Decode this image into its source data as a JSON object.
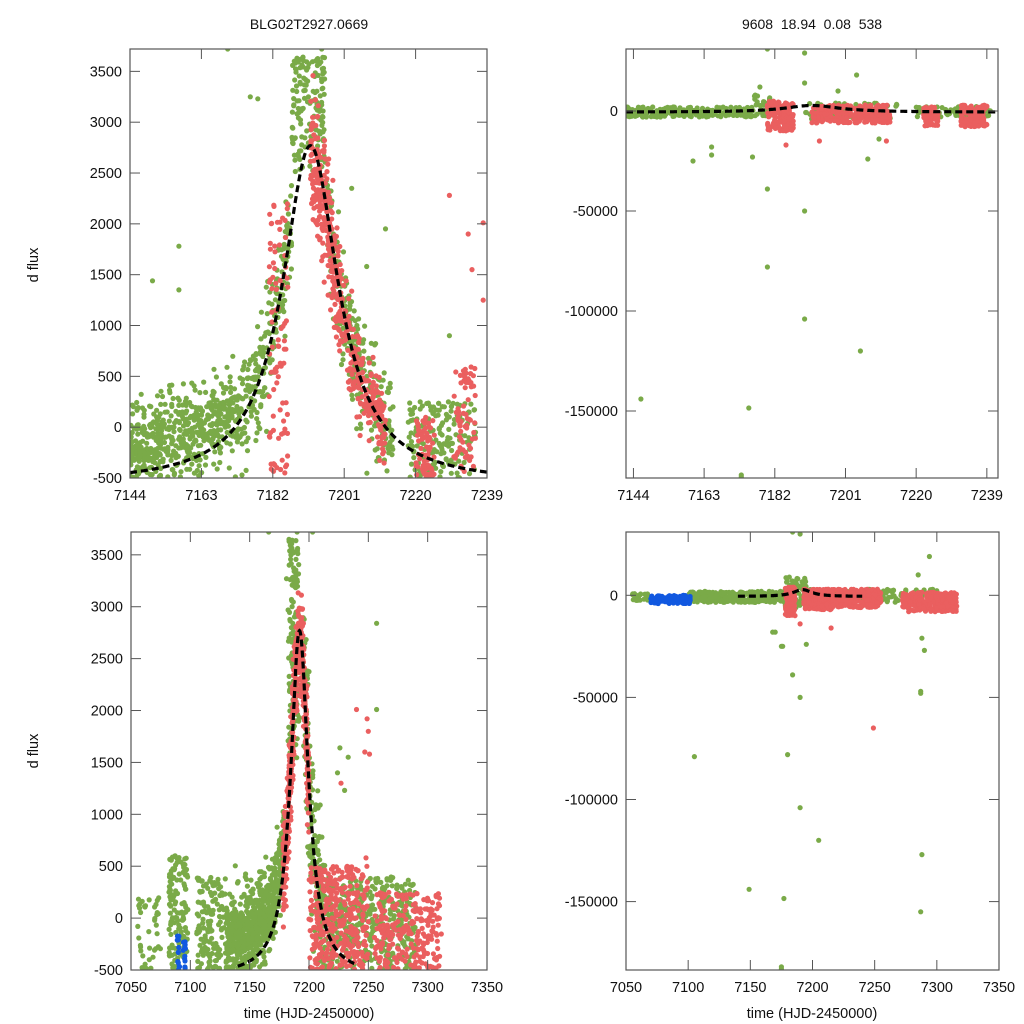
{
  "figure": {
    "title_left": "BLG02T2927.0669",
    "title_right": "9608  18.94  0.08  538",
    "ylabel": "d flux",
    "xlabel": "time (HJD-2450000)"
  },
  "colors": {
    "green": "#7aaa48",
    "red": "#ea5f5f",
    "blue": "#1158e0",
    "model": "#000000",
    "frame": "#555555"
  },
  "chart_data": [
    {
      "id": "top-left",
      "type": "scatter",
      "title": "BLG02T2927.0669",
      "xlabel": "",
      "ylabel": "d flux",
      "xlim": [
        7144,
        7239
      ],
      "ylim": [
        -500,
        3720
      ],
      "xticks": [
        7144,
        7163,
        7182,
        7201,
        7220,
        7239
      ],
      "yticks": [
        -500,
        0,
        500,
        1000,
        1500,
        2000,
        2500,
        3000,
        3500
      ],
      "model": {
        "t0": 7192,
        "peak": 2770,
        "baseline": -560,
        "width": 9,
        "xrange": [
          7144,
          7239
        ]
      },
      "series": [
        {
          "name": "green",
          "segments": [
            {
              "t": [
                7144,
                7172
              ],
              "n": 520,
              "spread": "model+",
              "sd": 260,
              "bias": 120
            },
            {
              "t": [
                7172,
                7187
              ],
              "n": 220,
              "spread": "model",
              "sd": 300,
              "bias": 80
            },
            {
              "t": [
                7187,
                7196
              ],
              "n": 150,
              "spread": "peak",
              "ymin": 2500,
              "ymax": 3650
            },
            {
              "t": [
                7196,
                7214
              ],
              "n": 260,
              "spread": "model",
              "sd": 260,
              "bias": 60
            },
            {
              "t": [
                7218,
                7236
              ],
              "n": 180,
              "spread": "band",
              "ymin": -500,
              "ymax": 250
            }
          ]
        },
        {
          "name": "red",
          "segments": [
            {
              "t": [
                7181,
                7186
              ],
              "n": 90,
              "spread": "band",
              "ymin": -450,
              "ymax": 2200
            },
            {
              "t": [
                7192,
                7200
              ],
              "n": 260,
              "spread": "model",
              "sd": 320,
              "bias": -100
            },
            {
              "t": [
                7200,
                7212
              ],
              "n": 200,
              "spread": "model",
              "sd": 220,
              "bias": 0
            },
            {
              "t": [
                7220,
                7225
              ],
              "n": 70,
              "spread": "band",
              "ymin": -500,
              "ymax": 100
            },
            {
              "t": [
                7230,
                7236
              ],
              "n": 70,
              "spread": "band",
              "ymin": -450,
              "ymax": 600
            }
          ]
        }
      ],
      "outliers": [
        {
          "x": 7170,
          "y": 3720,
          "c": "green"
        },
        {
          "x": 7195,
          "y": 3720,
          "c": "green"
        },
        {
          "x": 7176,
          "y": 3250,
          "c": "green"
        },
        {
          "x": 7178,
          "y": 3230,
          "c": "green"
        },
        {
          "x": 7157,
          "y": 1780,
          "c": "green"
        },
        {
          "x": 7157,
          "y": 1350,
          "c": "green"
        },
        {
          "x": 7150,
          "y": 1440,
          "c": "green"
        },
        {
          "x": 7229,
          "y": 2280,
          "c": "red"
        },
        {
          "x": 7234,
          "y": 1900,
          "c": "red"
        },
        {
          "x": 7238,
          "y": 2010,
          "c": "red"
        },
        {
          "x": 7235,
          "y": 1550,
          "c": "red"
        },
        {
          "x": 7238,
          "y": 1250,
          "c": "red"
        },
        {
          "x": 7203,
          "y": 2350,
          "c": "green"
        },
        {
          "x": 7207,
          "y": 1580,
          "c": "green"
        },
        {
          "x": 7212,
          "y": 1950,
          "c": "green"
        },
        {
          "x": 7229,
          "y": 900,
          "c": "green"
        }
      ]
    },
    {
      "id": "top-right",
      "type": "scatter",
      "title": "9608  18.94  0.08  538",
      "xlabel": "",
      "ylabel": "",
      "xlim": [
        7142,
        7242
      ],
      "ylim": [
        -183500,
        31000
      ],
      "xticks": [
        7144,
        7163,
        7182,
        7201,
        7220,
        7239
      ],
      "yticks": [
        -150000,
        -100000,
        -50000,
        0
      ],
      "model": {
        "t0": 7192,
        "peak": 2770,
        "baseline": -560,
        "width": 9,
        "xrange": [
          7142,
          7242
        ]
      },
      "series": [
        {
          "name": "green",
          "segments": [
            {
              "t": [
                7142,
                7176
              ],
              "n": 220,
              "spread": "band",
              "ymin": -3000,
              "ymax": 2000
            },
            {
              "t": [
                7176,
                7182
              ],
              "n": 40,
              "spread": "band",
              "ymin": -3000,
              "ymax": 8000
            },
            {
              "t": [
                7190,
                7215
              ],
              "n": 80,
              "spread": "band",
              "ymin": -4000,
              "ymax": 4000
            },
            {
              "t": [
                7220,
                7240
              ],
              "n": 70,
              "spread": "band",
              "ymin": -3000,
              "ymax": 2500
            }
          ]
        },
        {
          "name": "red",
          "segments": [
            {
              "t": [
                7180,
                7187
              ],
              "n": 140,
              "spread": "band",
              "ymin": -10000,
              "ymax": 5000
            },
            {
              "t": [
                7192,
                7213
              ],
              "n": 260,
              "spread": "band",
              "ymin": -6000,
              "ymax": 3000
            },
            {
              "t": [
                7222,
                7226
              ],
              "n": 60,
              "spread": "band",
              "ymin": -8000,
              "ymax": 2000
            },
            {
              "t": [
                7232,
                7239
              ],
              "n": 130,
              "spread": "band",
              "ymin": -8000,
              "ymax": 3000
            }
          ]
        }
      ],
      "outliers": [
        {
          "x": 7146,
          "y": -144000,
          "c": "green"
        },
        {
          "x": 7175,
          "y": -148500,
          "c": "green"
        },
        {
          "x": 7173,
          "y": -182000,
          "c": "green"
        },
        {
          "x": 7173,
          "y": -183000,
          "c": "green"
        },
        {
          "x": 7180,
          "y": -78000,
          "c": "green"
        },
        {
          "x": 7180,
          "y": -39000,
          "c": "green"
        },
        {
          "x": 7190,
          "y": -50000,
          "c": "green"
        },
        {
          "x": 7190,
          "y": -104000,
          "c": "green"
        },
        {
          "x": 7205,
          "y": -120000,
          "c": "green"
        },
        {
          "x": 7180,
          "y": 31000,
          "c": "green"
        },
        {
          "x": 7190,
          "y": 29000,
          "c": "green"
        },
        {
          "x": 7190,
          "y": 14000,
          "c": "green"
        },
        {
          "x": 7178,
          "y": 12000,
          "c": "green"
        },
        {
          "x": 7199,
          "y": 10000,
          "c": "green"
        },
        {
          "x": 7204,
          "y": 18000,
          "c": "green"
        },
        {
          "x": 7165,
          "y": -18000,
          "c": "green"
        },
        {
          "x": 7165,
          "y": -22000,
          "c": "green"
        },
        {
          "x": 7160,
          "y": -25000,
          "c": "green"
        },
        {
          "x": 7176,
          "y": -23000,
          "c": "green"
        },
        {
          "x": 7207,
          "y": -24000,
          "c": "green"
        },
        {
          "x": 7210,
          "y": -14000,
          "c": "green"
        },
        {
          "x": 7185,
          "y": -17000,
          "c": "red"
        },
        {
          "x": 7194,
          "y": -15000,
          "c": "red"
        },
        {
          "x": 7212,
          "y": -15000,
          "c": "red"
        }
      ]
    },
    {
      "id": "bottom-left",
      "type": "scatter",
      "title": "",
      "xlabel": "time (HJD-2450000)",
      "ylabel": "d flux",
      "xlim": [
        7050,
        7350
      ],
      "ylim": [
        -500,
        3720
      ],
      "xticks": [
        7050,
        7100,
        7150,
        7200,
        7250,
        7300,
        7350
      ],
      "yticks": [
        -500,
        0,
        500,
        1000,
        1500,
        2000,
        2500,
        3000,
        3500
      ],
      "model": {
        "t0": 7192,
        "peak": 2770,
        "baseline": -560,
        "width": 9,
        "xrange": [
          7140,
          7240
        ]
      },
      "series": [
        {
          "name": "green",
          "segments": [
            {
              "t": [
                7055,
                7075
              ],
              "n": 40,
              "spread": "band",
              "ymin": -500,
              "ymax": 200
            },
            {
              "t": [
                7082,
                7098
              ],
              "n": 130,
              "spread": "band",
              "ymin": -500,
              "ymax": 600
            },
            {
              "t": [
                7105,
                7130
              ],
              "n": 140,
              "spread": "band",
              "ymin": -500,
              "ymax": 400
            },
            {
              "t": [
                7130,
                7180
              ],
              "n": 700,
              "spread": "model+",
              "sd": 260,
              "bias": 150
            },
            {
              "t": [
                7182,
                7192
              ],
              "n": 160,
              "spread": "peak",
              "ymin": 1500,
              "ymax": 3650
            },
            {
              "t": [
                7195,
                7215
              ],
              "n": 200,
              "spread": "model",
              "sd": 400,
              "bias": 50
            },
            {
              "t": [
                7215,
                7290
              ],
              "n": 380,
              "spread": "band",
              "ymin": -500,
              "ymax": 400
            }
          ]
        },
        {
          "name": "red",
          "segments": [
            {
              "t": [
                7178,
                7188
              ],
              "n": 180,
              "spread": "model",
              "sd": 250,
              "bias": 0
            },
            {
              "t": [
                7188,
                7200
              ],
              "n": 260,
              "spread": "model",
              "sd": 250,
              "bias": -50
            },
            {
              "t": [
                7200,
                7250
              ],
              "n": 360,
              "spread": "band",
              "ymin": -500,
              "ymax": 500
            },
            {
              "t": [
                7255,
                7312
              ],
              "n": 240,
              "spread": "band",
              "ymin": -500,
              "ymax": 250
            }
          ]
        },
        {
          "name": "blue",
          "segments": [
            {
              "t": [
                7089,
                7096
              ],
              "n": 22,
              "spread": "band",
              "ymin": -500,
              "ymax": -150
            }
          ]
        }
      ],
      "outliers": [
        {
          "x": 7190,
          "y": 3720,
          "c": "green"
        },
        {
          "x": 7166,
          "y": 3720,
          "c": "green"
        },
        {
          "x": 7203,
          "y": 3720,
          "c": "green"
        },
        {
          "x": 7181,
          "y": 3270,
          "c": "green"
        },
        {
          "x": 7257,
          "y": 2840,
          "c": "green"
        },
        {
          "x": 7257,
          "y": 2010,
          "c": "green"
        },
        {
          "x": 7240,
          "y": 2010,
          "c": "red"
        },
        {
          "x": 7250,
          "y": 1800,
          "c": "red"
        },
        {
          "x": 7247,
          "y": 1600,
          "c": "red"
        },
        {
          "x": 7226,
          "y": 1640,
          "c": "green"
        },
        {
          "x": 7230,
          "y": 1230,
          "c": "green"
        },
        {
          "x": 7227,
          "y": 1300,
          "c": "red"
        },
        {
          "x": 7233,
          "y": 1550,
          "c": "green"
        },
        {
          "x": 7249,
          "y": 1920,
          "c": "red"
        },
        {
          "x": 7251,
          "y": 1580,
          "c": "red"
        },
        {
          "x": 7224,
          "y": 1400,
          "c": "green"
        },
        {
          "x": 7248,
          "y": 580,
          "c": "red"
        }
      ]
    },
    {
      "id": "bottom-right",
      "type": "scatter",
      "title": "",
      "xlabel": "time (HJD-2450000)",
      "ylabel": "",
      "xlim": [
        7050,
        7350
      ],
      "ylim": [
        -183500,
        31000
      ],
      "xticks": [
        7050,
        7100,
        7150,
        7200,
        7250,
        7300,
        7350
      ],
      "yticks": [
        -150000,
        -100000,
        -50000,
        0
      ],
      "model": {
        "t0": 7192,
        "peak": 2770,
        "baseline": -560,
        "width": 9,
        "xrange": [
          7140,
          7240
        ]
      },
      "series": [
        {
          "name": "green",
          "segments": [
            {
              "t": [
                7055,
                7068
              ],
              "n": 30,
              "spread": "band",
              "ymin": -2500,
              "ymax": 800
            },
            {
              "t": [
                7100,
                7178
              ],
              "n": 320,
              "spread": "band",
              "ymin": -3500,
              "ymax": 2000
            },
            {
              "t": [
                7178,
                7195
              ],
              "n": 90,
              "spread": "band",
              "ymin": -6000,
              "ymax": 9000
            },
            {
              "t": [
                7195,
                7300
              ],
              "n": 200,
              "spread": "band",
              "ymin": -3500,
              "ymax": 3000
            }
          ]
        },
        {
          "name": "red",
          "segments": [
            {
              "t": [
                7178,
                7186
              ],
              "n": 160,
              "spread": "band",
              "ymin": -10000,
              "ymax": 4000
            },
            {
              "t": [
                7193,
                7215
              ],
              "n": 260,
              "spread": "band",
              "ymin": -7000,
              "ymax": 3000
            },
            {
              "t": [
                7215,
                7255
              ],
              "n": 220,
              "spread": "band",
              "ymin": -6000,
              "ymax": 3000
            },
            {
              "t": [
                7272,
                7316
              ],
              "n": 260,
              "spread": "band",
              "ymin": -8000,
              "ymax": 1500
            }
          ]
        },
        {
          "name": "blue",
          "segments": [
            {
              "t": [
                7070,
                7102
              ],
              "n": 120,
              "spread": "band",
              "ymin": -4000,
              "ymax": 0
            }
          ]
        }
      ],
      "outliers": [
        {
          "x": 7105,
          "y": -79000,
          "c": "green"
        },
        {
          "x": 7180,
          "y": -78000,
          "c": "green"
        },
        {
          "x": 7190,
          "y": -104000,
          "c": "green"
        },
        {
          "x": 7205,
          "y": -120000,
          "c": "green"
        },
        {
          "x": 7288,
          "y": -127000,
          "c": "green"
        },
        {
          "x": 7149,
          "y": -144000,
          "c": "green"
        },
        {
          "x": 7177,
          "y": -148500,
          "c": "green"
        },
        {
          "x": 7287,
          "y": -155000,
          "c": "green"
        },
        {
          "x": 7175,
          "y": -182000,
          "c": "green"
        },
        {
          "x": 7175,
          "y": -183000,
          "c": "green"
        },
        {
          "x": 7249,
          "y": -65000,
          "c": "red"
        },
        {
          "x": 7190,
          "y": -50000,
          "c": "green"
        },
        {
          "x": 7184,
          "y": -39000,
          "c": "green"
        },
        {
          "x": 7287,
          "y": -47000,
          "c": "green"
        },
        {
          "x": 7287,
          "y": -48000,
          "c": "green"
        },
        {
          "x": 7184,
          "y": 31000,
          "c": "green"
        },
        {
          "x": 7190,
          "y": 30000,
          "c": "green"
        },
        {
          "x": 7294,
          "y": 19000,
          "c": "green"
        },
        {
          "x": 7285,
          "y": 10000,
          "c": "green"
        },
        {
          "x": 7175,
          "y": -25000,
          "c": "green"
        },
        {
          "x": 7168,
          "y": -18000,
          "c": "green"
        },
        {
          "x": 7170,
          "y": -18000,
          "c": "green"
        },
        {
          "x": 7195,
          "y": -24000,
          "c": "green"
        },
        {
          "x": 7176,
          "y": -25000,
          "c": "green"
        },
        {
          "x": 7290,
          "y": -27000,
          "c": "green"
        },
        {
          "x": 7288,
          "y": -21000,
          "c": "green"
        },
        {
          "x": 7190,
          "y": -14000,
          "c": "red"
        },
        {
          "x": 7215,
          "y": -16000,
          "c": "red"
        }
      ]
    }
  ]
}
